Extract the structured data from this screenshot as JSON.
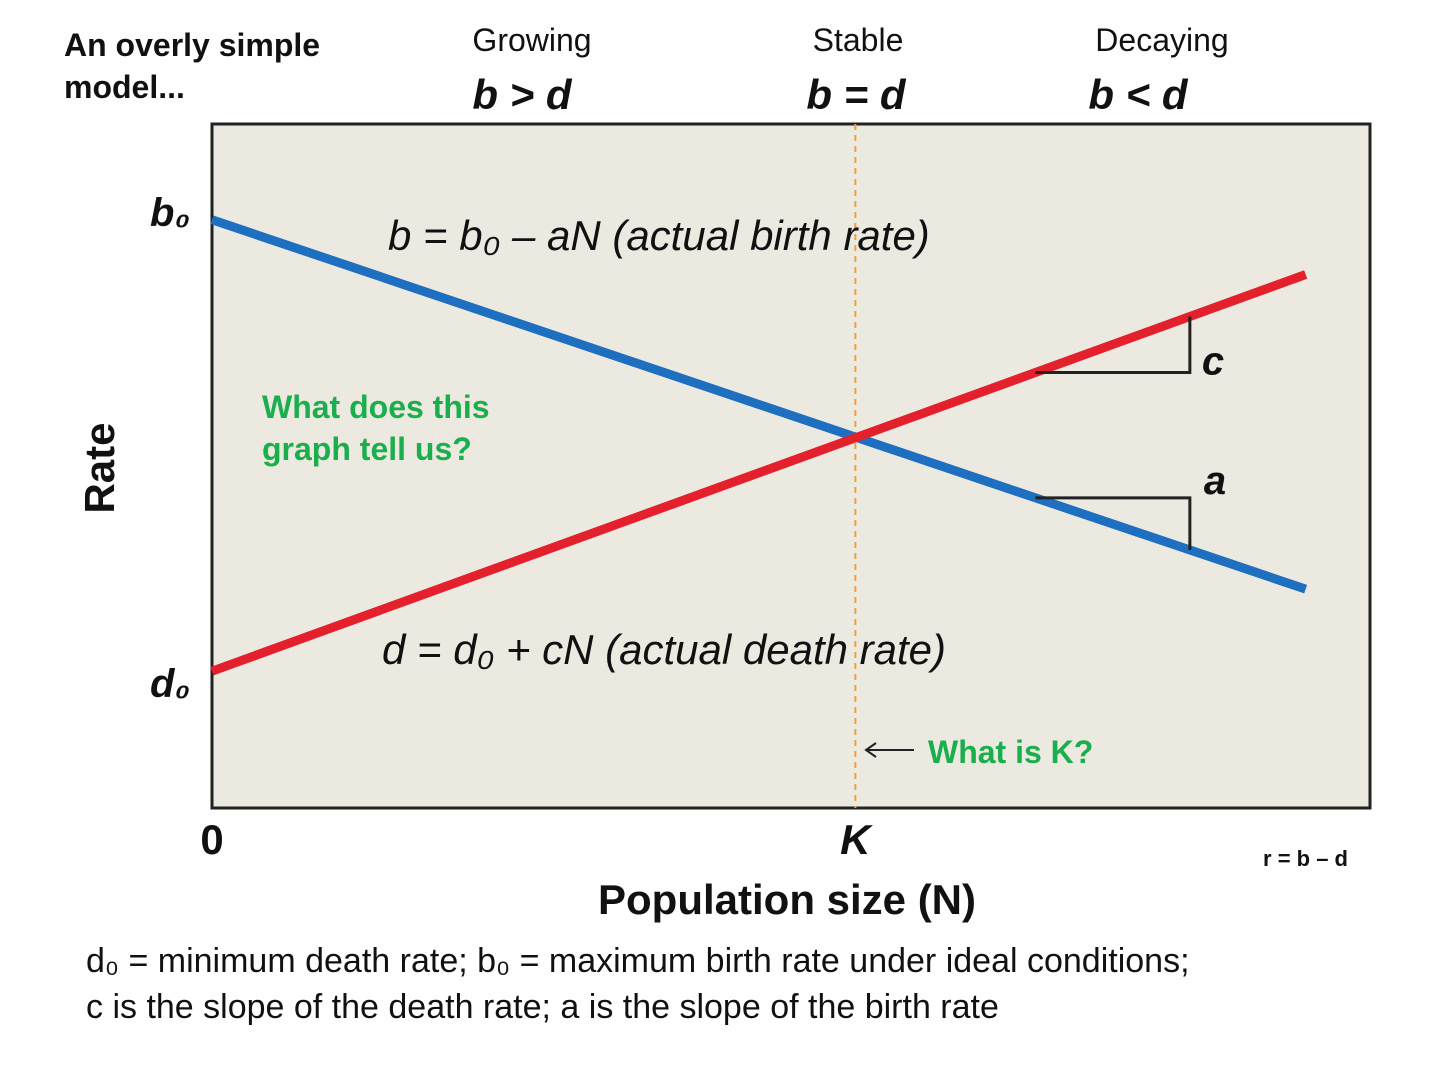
{
  "title": "An overly simple model...",
  "phases": [
    {
      "label": "Growing",
      "condition": "b > d"
    },
    {
      "label": "Stable",
      "condition": "b = d"
    },
    {
      "label": "Decaying",
      "condition": "b < d"
    }
  ],
  "formula": "r = b – d",
  "footnote": {
    "line1": "d₀ = minimum death rate; b₀ = maximum birth rate under ideal conditions;",
    "line2": "c is the slope of the death rate; a is the slope of the birth rate"
  },
  "colors": {
    "birth_line": "#1f6fc0",
    "death_line": "#e3202b",
    "k_line": "#f0a040",
    "question_text": "#1aae4c",
    "plot_bg": "#ece9e1"
  },
  "chart_data": {
    "type": "line",
    "xlabel": "Population size (N)",
    "ylabel": "Rate",
    "x_ticks": [
      "0",
      "K"
    ],
    "y_ticks": [
      "b₀",
      "d₀"
    ],
    "xlim": [
      0,
      1.8
    ],
    "ylim": [
      0.0,
      1.0
    ],
    "k_value": 1.0,
    "series": [
      {
        "name": "b = b₀ – aN (actual birth rate)",
        "x": [
          0,
          1.7
        ],
        "y": [
          0.86,
          0.32
        ]
      },
      {
        "name": "d = d₀ + cN (actual death rate)",
        "x": [
          0,
          1.7
        ],
        "y": [
          0.2,
          0.78
        ]
      }
    ],
    "slope_labels": [
      "c",
      "a"
    ],
    "annotations": [
      "What does this graph tell us?",
      "What is K?"
    ]
  }
}
